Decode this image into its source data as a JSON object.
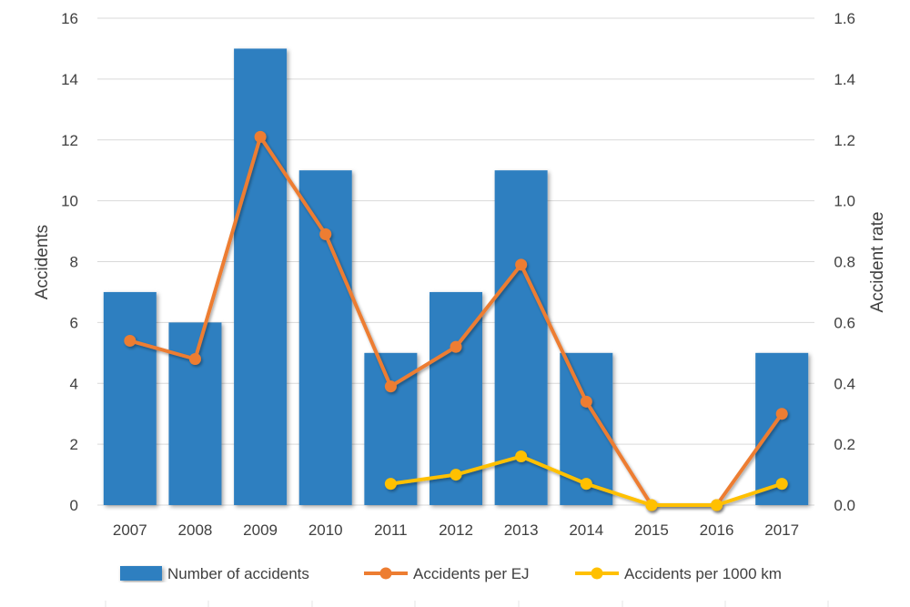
{
  "chart_data": {
    "type": "bar",
    "categories": [
      "2007",
      "2008",
      "2009",
      "2010",
      "2011",
      "2012",
      "2013",
      "2014",
      "2015",
      "2016",
      "2017"
    ],
    "series": [
      {
        "name": "Number of accidents",
        "type": "bar",
        "axis": "left",
        "color": "#2e7fc0",
        "values": [
          7,
          6,
          15,
          11,
          5,
          7,
          11,
          5,
          0,
          0,
          5
        ]
      },
      {
        "name": "Accidents per EJ",
        "type": "line",
        "axis": "right",
        "color": "#ed7d31",
        "values": [
          0.54,
          0.48,
          1.21,
          0.89,
          0.39,
          0.52,
          0.79,
          0.34,
          0.0,
          0.0,
          0.3
        ]
      },
      {
        "name": "Accidents per 1000 km",
        "type": "line",
        "axis": "right",
        "color": "#ffc000",
        "values": [
          null,
          null,
          null,
          null,
          0.07,
          0.1,
          0.16,
          0.07,
          0.0,
          0.0,
          0.07
        ]
      }
    ],
    "y_left": {
      "label": "Accidents",
      "ylim": [
        0,
        16
      ],
      "ticks": [
        "0",
        "2",
        "4",
        "6",
        "8",
        "10",
        "12",
        "14",
        "16"
      ]
    },
    "y_right": {
      "label": "Accident rate",
      "ylim": [
        0,
        1.6
      ],
      "ticks": [
        "0.0",
        "0.2",
        "0.4",
        "0.6",
        "0.8",
        "1.0",
        "1.2",
        "1.4",
        "1.6"
      ]
    },
    "grid": true,
    "legend_position": "bottom"
  }
}
